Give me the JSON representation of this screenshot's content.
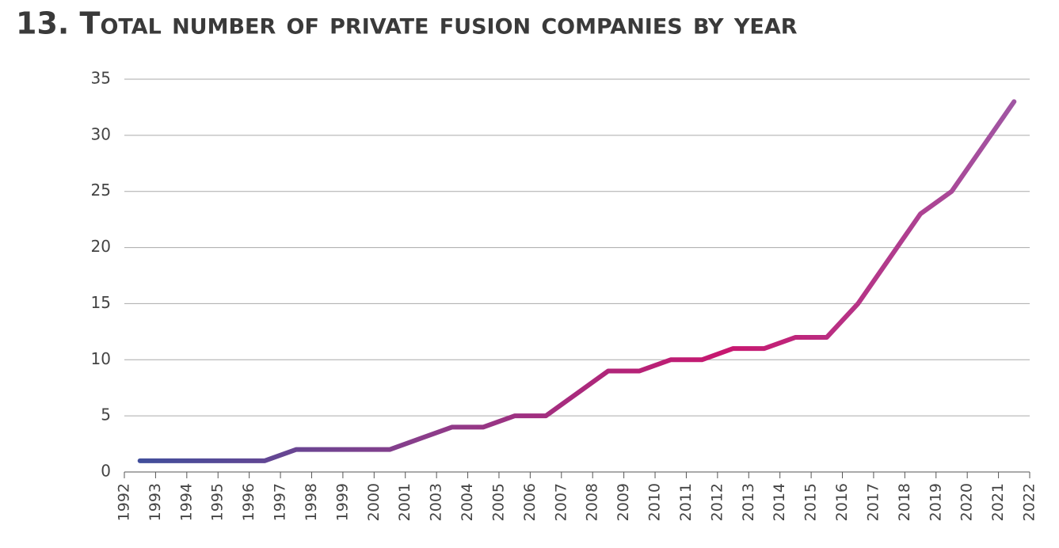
{
  "chart_data": {
    "type": "line",
    "title": "13. Total number of private fusion companies by year",
    "categories": [
      "1992",
      "1993",
      "1994",
      "1995",
      "1996",
      "1997",
      "1998",
      "1999",
      "2000",
      "2001",
      "2003",
      "2004",
      "2005",
      "2006",
      "2007",
      "2008",
      "2009",
      "2010",
      "2011",
      "2012",
      "2013",
      "2014",
      "2015",
      "2016",
      "2017",
      "2018",
      "2019",
      "2020",
      "2021",
      "2022"
    ],
    "values": [
      1,
      1,
      1,
      1,
      1,
      2,
      2,
      2,
      2,
      3,
      4,
      4,
      5,
      5,
      7,
      9,
      9,
      10,
      10,
      11,
      11,
      12,
      12,
      15,
      19,
      23,
      25,
      29,
      33,
      null
    ],
    "colors": [
      "#3d4f9c",
      "#8b3d8a",
      "#c8176f",
      "#9e5aa6"
    ],
    "ylim": [
      0,
      35
    ],
    "yticks": [
      0,
      5,
      10,
      15,
      20,
      25,
      30,
      35
    ],
    "grid": true
  }
}
